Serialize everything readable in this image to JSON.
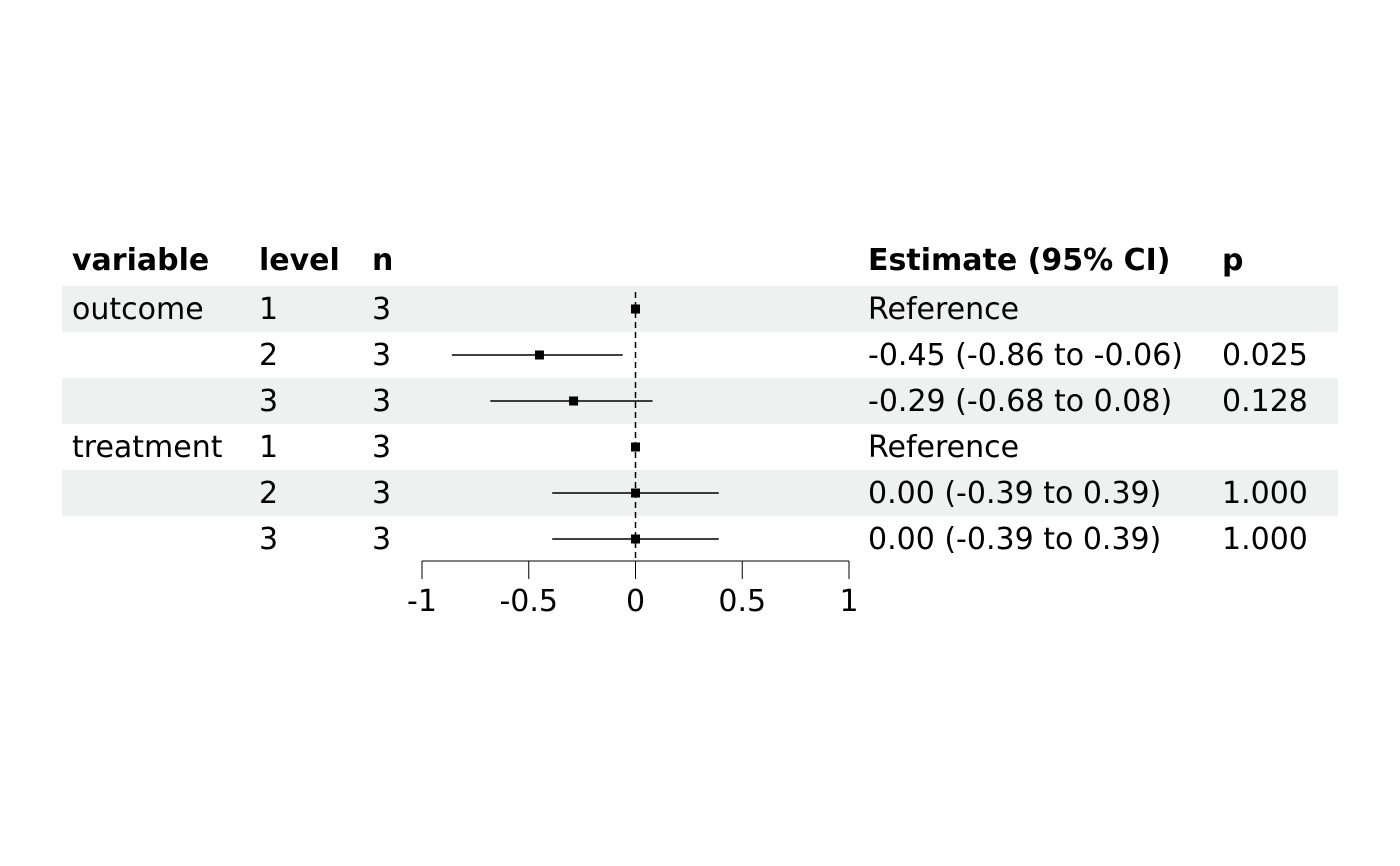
{
  "headers": {
    "variable": "variable",
    "level": "level",
    "n": "n",
    "estimate": "Estimate (95% CI)",
    "p": "p"
  },
  "rows": [
    {
      "variable": "outcome",
      "level": "1",
      "n": "3",
      "estimate_text": "Reference",
      "p": "",
      "shaded": true
    },
    {
      "variable": "",
      "level": "2",
      "n": "3",
      "estimate_text": "-0.45 (-0.86 to -0.06)",
      "p": "0.025",
      "shaded": false
    },
    {
      "variable": "",
      "level": "3",
      "n": "3",
      "estimate_text": "-0.29 (-0.68 to 0.08)",
      "p": "0.128",
      "shaded": true
    },
    {
      "variable": "treatment",
      "level": "1",
      "n": "3",
      "estimate_text": "Reference",
      "p": "",
      "shaded": false
    },
    {
      "variable": "",
      "level": "2",
      "n": "3",
      "estimate_text": "0.00 (-0.39 to 0.39)",
      "p": "1.000",
      "shaded": true
    },
    {
      "variable": "",
      "level": "3",
      "n": "3",
      "estimate_text": "0.00 (-0.39 to 0.39)",
      "p": "1.000",
      "shaded": false
    }
  ],
  "colors": {
    "band": "#eff1f0",
    "ink": "#000000"
  },
  "chart_data": {
    "type": "scatter",
    "xlim": [
      -1,
      1
    ],
    "x_ticks": [
      -1,
      -0.5,
      0,
      0.5,
      1
    ],
    "x_tick_labels": [
      "-1",
      "-0.5",
      "0",
      "0.5",
      "1"
    ],
    "reference_line": 0,
    "points": [
      {
        "estimate": 0,
        "lower": 0,
        "upper": 0
      },
      {
        "estimate": -0.45,
        "lower": -0.86,
        "upper": -0.06
      },
      {
        "estimate": -0.29,
        "lower": -0.68,
        "upper": 0.08
      },
      {
        "estimate": 0,
        "lower": 0,
        "upper": 0
      },
      {
        "estimate": 0,
        "lower": -0.39,
        "upper": 0.39
      },
      {
        "estimate": 0,
        "lower": -0.39,
        "upper": 0.39
      }
    ]
  }
}
